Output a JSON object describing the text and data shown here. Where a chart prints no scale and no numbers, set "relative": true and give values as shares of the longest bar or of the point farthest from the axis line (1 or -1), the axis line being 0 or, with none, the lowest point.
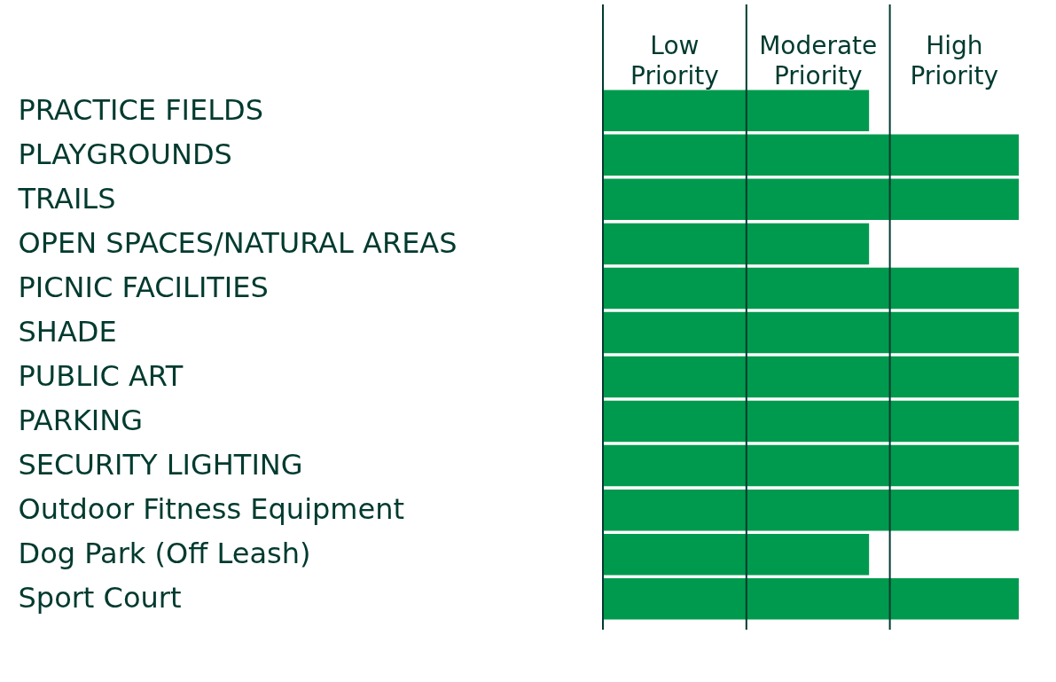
{
  "chart_data": {
    "type": "bar",
    "orientation": "horizontal",
    "relative": true,
    "categories": [
      "PRACTICE FIELDS",
      "PLAYGROUNDS",
      "TRAILS",
      "OPEN SPACES/NATURAL AREAS",
      "PICNIC FACILITIES",
      "SHADE",
      "PUBLIC ART",
      "PARKING",
      "SECURITY LIGHTING",
      "Outdoor Fitness Equipment",
      "Dog Park (Off Leash)",
      "Sport Court"
    ],
    "values": [
      0.64,
      1,
      1,
      0.64,
      1,
      1,
      1,
      1,
      1,
      1,
      0.64,
      1
    ],
    "color": "#009a4e",
    "ref_lines": [
      {
        "axis": "x",
        "value": 0,
        "color": "#003a2e"
      },
      {
        "axis": "x",
        "value": 0.345,
        "color": "#003a2e"
      },
      {
        "axis": "x",
        "value": 0.69,
        "color": "#003a2e"
      }
    ],
    "annotations": [
      "Low Priority",
      "Moderate Priority",
      "High Priority"
    ]
  }
}
